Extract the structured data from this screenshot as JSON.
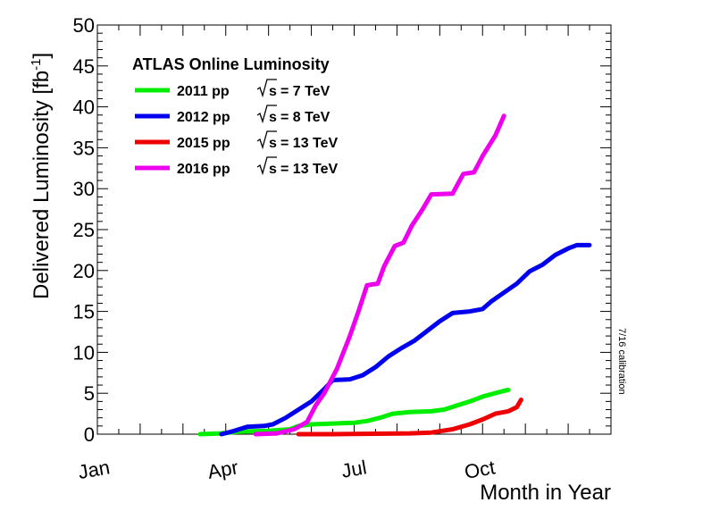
{
  "chart_data": {
    "type": "line",
    "title": "ATLAS Online Luminosity",
    "xlabel": "Month in Year",
    "ylabel": "Delivered Luminosity [fb",
    "ylabel_sup": "-1",
    "ylabel_tail": "]",
    "note": "7/16 calibration",
    "xlim": [
      1,
      13
    ],
    "ylim": [
      0,
      50
    ],
    "x_ticks": [
      {
        "label": "Jan",
        "value": 1
      },
      {
        "label": "Apr",
        "value": 4
      },
      {
        "label": "Jul",
        "value": 7
      },
      {
        "label": "Oct",
        "value": 10
      }
    ],
    "y_ticks": [
      0,
      5,
      10,
      15,
      20,
      25,
      30,
      35,
      40,
      45,
      50
    ],
    "grid": false,
    "legend_position": "top-left",
    "series": [
      {
        "name": "2011 pp",
        "energy": "= 7 TeV",
        "color": "#00ee00",
        "points": [
          [
            3.4,
            0
          ],
          [
            3.9,
            0.1
          ],
          [
            4.3,
            0.3
          ],
          [
            5.0,
            0.4
          ],
          [
            5.5,
            0.6
          ],
          [
            5.7,
            1.0
          ],
          [
            6.0,
            1.2
          ],
          [
            6.5,
            1.3
          ],
          [
            7.0,
            1.4
          ],
          [
            7.3,
            1.6
          ],
          [
            7.6,
            2.0
          ],
          [
            7.9,
            2.5
          ],
          [
            8.3,
            2.7
          ],
          [
            8.8,
            2.8
          ],
          [
            9.1,
            3.0
          ],
          [
            9.4,
            3.5
          ],
          [
            9.7,
            4.0
          ],
          [
            10.0,
            4.6
          ],
          [
            10.5,
            5.3
          ],
          [
            10.6,
            5.4
          ]
        ]
      },
      {
        "name": "2012 pp",
        "energy": "= 8 TeV",
        "color": "#0000ee",
        "points": [
          [
            3.9,
            0
          ],
          [
            4.2,
            0.4
          ],
          [
            4.5,
            0.9
          ],
          [
            4.9,
            1.0
          ],
          [
            5.1,
            1.2
          ],
          [
            5.4,
            2.0
          ],
          [
            5.7,
            3.0
          ],
          [
            6.0,
            4.0
          ],
          [
            6.3,
            5.5
          ],
          [
            6.5,
            6.6
          ],
          [
            6.9,
            6.7
          ],
          [
            7.2,
            7.2
          ],
          [
            7.5,
            8.2
          ],
          [
            7.8,
            9.5
          ],
          [
            8.1,
            10.5
          ],
          [
            8.4,
            11.4
          ],
          [
            8.7,
            12.6
          ],
          [
            9.0,
            13.8
          ],
          [
            9.3,
            14.8
          ],
          [
            9.7,
            15.0
          ],
          [
            10.0,
            15.3
          ],
          [
            10.2,
            16.2
          ],
          [
            10.5,
            17.3
          ],
          [
            10.8,
            18.4
          ],
          [
            11.1,
            19.9
          ],
          [
            11.4,
            20.7
          ],
          [
            11.7,
            21.9
          ],
          [
            12.0,
            22.7
          ],
          [
            12.2,
            23.1
          ],
          [
            12.5,
            23.1
          ]
        ]
      },
      {
        "name": "2015 pp",
        "energy": "= 13 TeV",
        "color": "#ee0000",
        "points": [
          [
            5.7,
            0
          ],
          [
            6.5,
            0
          ],
          [
            7.5,
            0.05
          ],
          [
            8.3,
            0.1
          ],
          [
            8.8,
            0.2
          ],
          [
            9.3,
            0.6
          ],
          [
            9.7,
            1.2
          ],
          [
            10.0,
            1.8
          ],
          [
            10.3,
            2.5
          ],
          [
            10.6,
            2.8
          ],
          [
            10.8,
            3.3
          ],
          [
            10.9,
            4.2
          ]
        ]
      },
      {
        "name": "2016 pp",
        "energy": "= 13 TeV",
        "color": "#ee00ee",
        "points": [
          [
            4.7,
            0
          ],
          [
            5.2,
            0.1
          ],
          [
            5.6,
            0.6
          ],
          [
            5.9,
            1.5
          ],
          [
            6.1,
            3.5
          ],
          [
            6.3,
            5.0
          ],
          [
            6.6,
            8.0
          ],
          [
            6.9,
            12.0
          ],
          [
            7.1,
            15.0
          ],
          [
            7.3,
            18.2
          ],
          [
            7.55,
            18.4
          ],
          [
            7.7,
            20.5
          ],
          [
            7.95,
            23.0
          ],
          [
            8.15,
            23.4
          ],
          [
            8.35,
            25.5
          ],
          [
            8.6,
            27.5
          ],
          [
            8.8,
            29.3
          ],
          [
            9.3,
            29.4
          ],
          [
            9.55,
            31.8
          ],
          [
            9.8,
            32.0
          ],
          [
            10.0,
            34.0
          ],
          [
            10.3,
            36.5
          ],
          [
            10.5,
            38.9
          ]
        ]
      }
    ]
  }
}
